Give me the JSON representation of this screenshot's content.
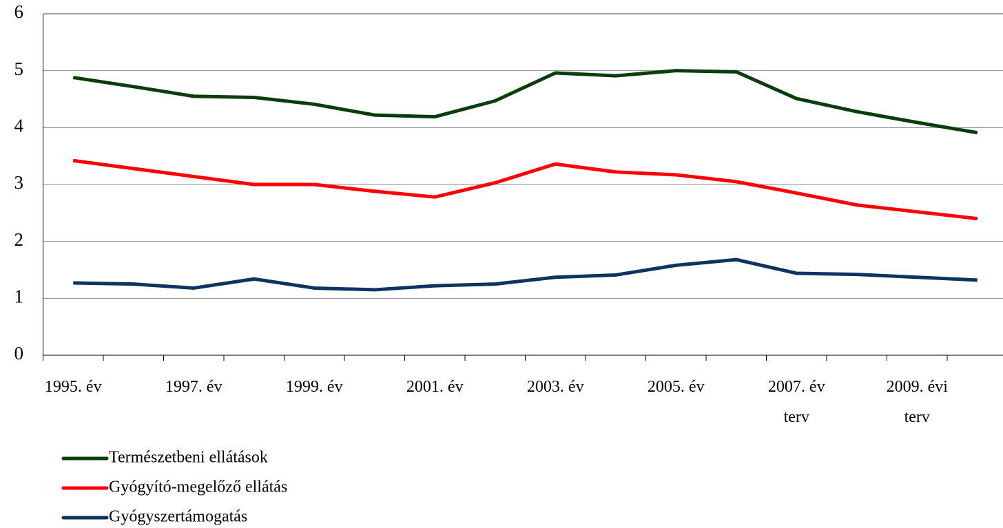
{
  "chart_data": {
    "type": "line",
    "categories": [
      "1995. év",
      null,
      "1997. év",
      null,
      "1999. év",
      null,
      "2001. év",
      null,
      "2003. év",
      null,
      "2005. év",
      null,
      "2007. év\nterv",
      null,
      "2009. évi\nterv",
      null
    ],
    "series": [
      {
        "name": "Természetbeni ellátások",
        "color": "#0b3d0b",
        "values": [
          4.88,
          4.72,
          4.55,
          4.53,
          4.41,
          4.22,
          4.19,
          4.47,
          4.96,
          4.91,
          5.0,
          4.98,
          4.51,
          4.28,
          4.09,
          3.91
        ]
      },
      {
        "name": "Gyógyító-megelőző ellátás",
        "color": "#ff0000",
        "values": [
          3.42,
          3.28,
          3.14,
          3.0,
          3.0,
          2.88,
          2.78,
          3.03,
          3.36,
          3.22,
          3.17,
          3.05,
          2.85,
          2.64,
          2.52,
          2.4
        ]
      },
      {
        "name": "Gyógyszertámogatás",
        "color": "#0b3560",
        "values": [
          1.27,
          1.25,
          1.18,
          1.34,
          1.18,
          1.15,
          1.22,
          1.25,
          1.37,
          1.41,
          1.58,
          1.68,
          1.44,
          1.42,
          1.37,
          1.32
        ]
      }
    ],
    "ylim": [
      0,
      6
    ],
    "yticks": [
      0,
      1,
      2,
      3,
      4,
      5,
      6
    ],
    "grid": true,
    "legend": "bottom-left"
  }
}
